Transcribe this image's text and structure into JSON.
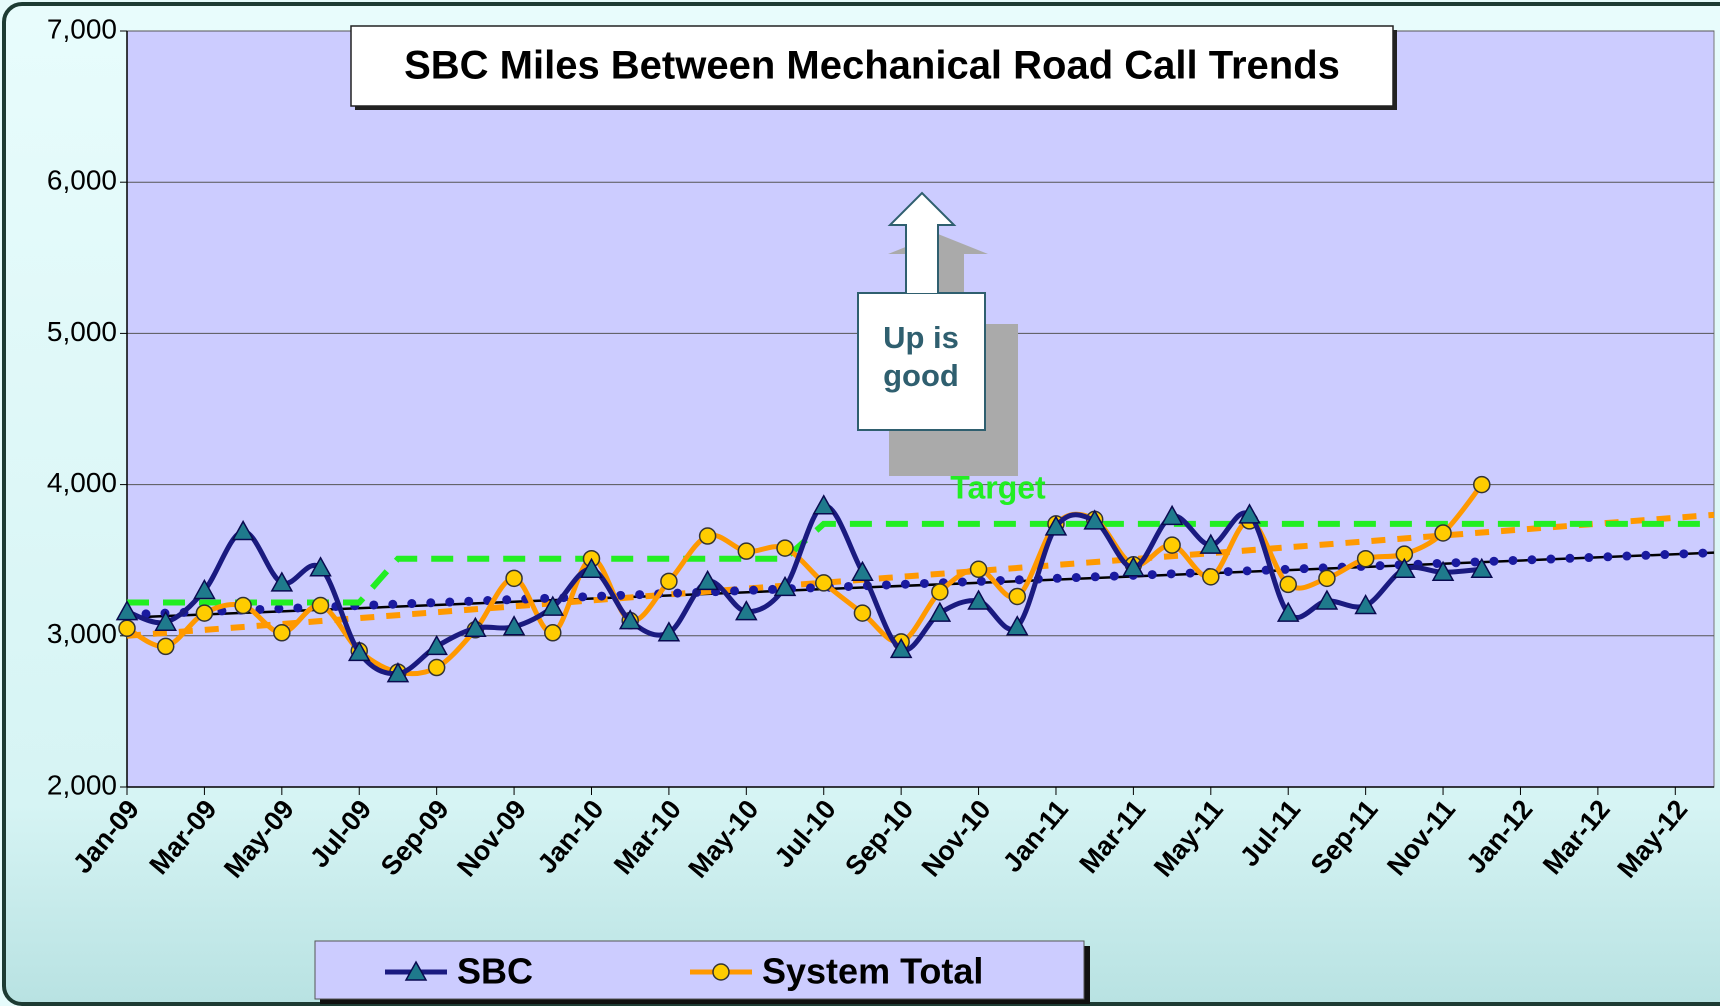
{
  "chart_data": {
    "type": "line",
    "title": "SBC Miles Between Mechanical Road Call Trends",
    "categories": [
      "Jan-09",
      null,
      "Mar-09",
      null,
      "May-09",
      null,
      "Jul-09",
      null,
      "Sep-09",
      null,
      "Nov-09",
      null,
      "Jan-10",
      null,
      "Mar-10",
      null,
      "May-10",
      null,
      "Jul-10",
      null,
      "Sep-10",
      null,
      "Nov-10",
      null,
      "Jan-11",
      null,
      "Mar-11",
      null,
      "May-11",
      null,
      "Jul-11",
      null,
      "Sep-11",
      null,
      "Nov-11",
      null,
      "Jan-12",
      null,
      "Mar-12",
      null,
      "May-12",
      null
    ],
    "series": [
      {
        "name": "SBC",
        "color": "#1a1a80",
        "marker": "triangle",
        "marker_color": "#1f7a8c",
        "values": [
          3160,
          3090,
          3300,
          3690,
          3350,
          3450,
          2890,
          2750,
          2930,
          3050,
          3060,
          3190,
          3440,
          3100,
          3020,
          3360,
          3160,
          3320,
          3860,
          3420,
          2910,
          3150,
          3230,
          3060,
          3720,
          3760,
          3450,
          3790,
          3600,
          3800,
          3150,
          3230,
          3200,
          3440,
          3420,
          3440,
          null,
          null,
          null,
          null,
          null,
          null
        ]
      },
      {
        "name": "System Total",
        "color": "#ff9900",
        "marker": "circle",
        "marker_color": "#ffcc00",
        "values": [
          3050,
          2930,
          3150,
          3200,
          3020,
          3200,
          2900,
          2760,
          2790,
          3040,
          3380,
          3020,
          3510,
          3100,
          3360,
          3660,
          3560,
          3580,
          3350,
          3150,
          2960,
          3290,
          3440,
          3260,
          3740,
          3770,
          3470,
          3600,
          3390,
          3760,
          3340,
          3380,
          3510,
          3540,
          3680,
          4000,
          null,
          null,
          null,
          null,
          null,
          null
        ]
      }
    ],
    "target": {
      "label": "Target",
      "color": "#22ee22",
      "values": [
        3220,
        3220,
        3220,
        3220,
        3220,
        3220,
        3220,
        3510,
        3510,
        3510,
        3510,
        3510,
        3510,
        3510,
        3510,
        3510,
        3510,
        3510,
        3740,
        3740,
        3740,
        3740,
        3740,
        3740,
        3740,
        3740,
        3740,
        3740,
        3740,
        3740,
        3740,
        3740,
        3740,
        3740,
        3740,
        3740,
        3740,
        3740,
        3740,
        3740,
        3740,
        3740
      ]
    },
    "trendlines": [
      {
        "color": "#000000",
        "style": "solid",
        "values": [
          3120,
          3550
        ]
      },
      {
        "color": "#ff9900",
        "style": "dashed",
        "values": [
          3000,
          3800
        ]
      },
      {
        "color": "#1a1aa0",
        "style": "dotted",
        "values": [
          3140,
          3550
        ]
      }
    ],
    "annotation": {
      "text": [
        "Up is",
        "good"
      ]
    },
    "ylim": [
      2000,
      7000
    ],
    "yticks": [
      {
        "value": 2000,
        "label": "2,000"
      },
      {
        "value": 3000,
        "label": "3,000"
      },
      {
        "value": 4000,
        "label": "4,000"
      },
      {
        "value": 5000,
        "label": "5,000"
      },
      {
        "value": 6000,
        "label": "6,000"
      },
      {
        "value": 7000,
        "label": "7,000"
      }
    ],
    "grid": true,
    "plot_color": "#ccccff"
  }
}
